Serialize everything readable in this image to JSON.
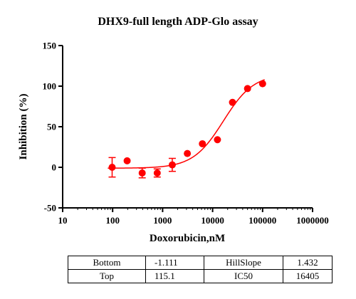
{
  "chart_data": {
    "type": "scatter",
    "title": "DHX9-full length ADP-Glo assay",
    "xlabel": "Doxorubicin,nM",
    "ylabel": "Inhibition (%)",
    "x_scale": "log",
    "xlim": [
      10,
      1000000
    ],
    "ylim": [
      -50,
      150
    ],
    "x_ticks": [
      "10",
      "100",
      "1000",
      "10000",
      "100000",
      "1000000"
    ],
    "y_ticks": [
      "-50",
      "0",
      "50",
      "100",
      "150"
    ],
    "grid": false,
    "color": "#ff0000",
    "series": [
      {
        "x": [
          97.7,
          195,
          390,
          780,
          1560,
          3125,
          6250,
          12500,
          25000,
          50000,
          100000
        ],
        "y": [
          0,
          8,
          -7,
          -7,
          3,
          17,
          29,
          34,
          80,
          97,
          103
        ],
        "error": [
          12,
          0,
          6,
          5,
          8,
          0,
          0,
          0,
          0,
          0,
          0
        ]
      }
    ],
    "fit": {
      "bottom": -1.111,
      "top": 115.1,
      "hill_slope": 1.432,
      "ic50": 16405
    }
  },
  "table": {
    "rows": [
      [
        "Bottom",
        "-1.111",
        "HillSlope",
        "1.432"
      ],
      [
        "Top",
        "115.1",
        "IC50",
        "16405"
      ]
    ]
  }
}
